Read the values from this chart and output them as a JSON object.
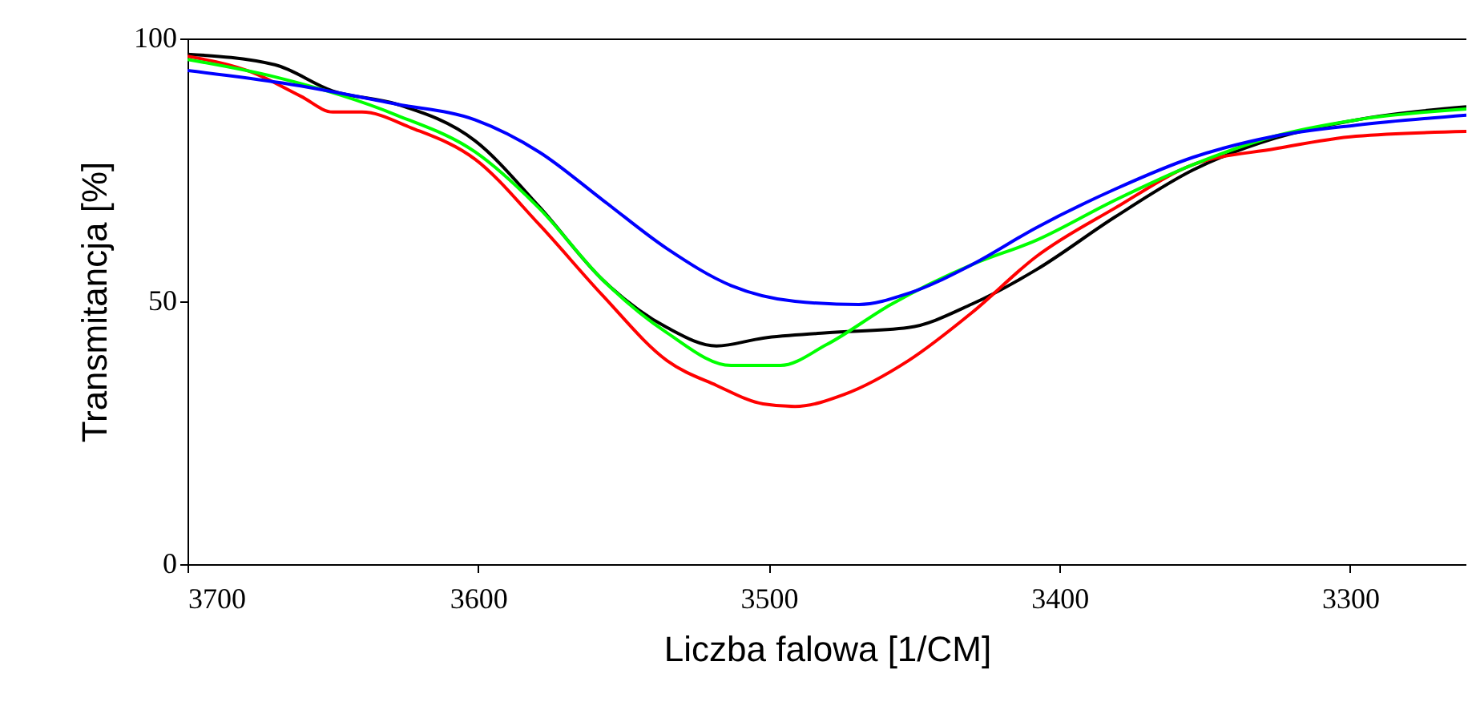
{
  "chart_data": {
    "type": "line",
    "xlabel": "Liczba falowa [1/CM]",
    "ylabel": "Transmitancja [%]",
    "xlim": [
      3700,
      3260
    ],
    "xticks": [
      3700,
      3600,
      3500,
      3400,
      3300
    ],
    "ylim": [
      0,
      100
    ],
    "yticks": [
      0,
      50,
      100
    ],
    "grid": false,
    "marker": "none",
    "line_style": "solid",
    "series": [
      {
        "color": "#000000",
        "x": [
          3700,
          3670,
          3650,
          3628,
          3601,
          3579,
          3557,
          3535,
          3518,
          3502,
          3480,
          3452,
          3430,
          3408,
          3381,
          3354,
          3326,
          3298,
          3260
        ],
        "values": [
          97,
          95,
          90,
          87.5,
          80.5,
          68,
          54,
          45,
          41.5,
          43,
          44,
          45,
          49.5,
          56,
          66,
          75,
          81,
          84.5,
          87
        ]
      },
      {
        "color": "#ff0000",
        "x": [
          3700,
          3678,
          3661,
          3650,
          3640,
          3623,
          3601,
          3579,
          3557,
          3535,
          3518,
          3502,
          3491,
          3474,
          3452,
          3430,
          3408,
          3381,
          3354,
          3326,
          3298,
          3260
        ],
        "values": [
          96.6,
          93.6,
          89,
          86,
          86,
          83,
          77,
          64.6,
          51,
          38.7,
          34,
          30.5,
          30,
          32.3,
          38.7,
          47.9,
          58.5,
          67.7,
          76,
          79,
          81.4,
          82.3
        ]
      },
      {
        "color": "#00ff00",
        "x": [
          3700,
          3670,
          3628,
          3601,
          3579,
          3557,
          3535,
          3513,
          3496,
          3480,
          3458,
          3430,
          3408,
          3381,
          3354,
          3326,
          3298,
          3260
        ],
        "values": [
          96,
          92.7,
          85.4,
          78.4,
          67.7,
          54,
          44,
          37.8,
          37.8,
          41.8,
          49.4,
          57,
          61.6,
          69.2,
          76,
          81.4,
          84.5,
          86.6
        ]
      },
      {
        "color": "#0000ff",
        "x": [
          3700,
          3667,
          3628,
          3601,
          3579,
          3557,
          3535,
          3513,
          3491,
          3469,
          3452,
          3430,
          3408,
          3381,
          3354,
          3326,
          3298,
          3260
        ],
        "values": [
          93.9,
          91.5,
          87.5,
          84.5,
          78.4,
          69.2,
          60,
          53,
          50,
          49.4,
          51.5,
          57,
          64,
          71.3,
          77.4,
          81.4,
          83.5,
          85.4
        ]
      }
    ]
  }
}
